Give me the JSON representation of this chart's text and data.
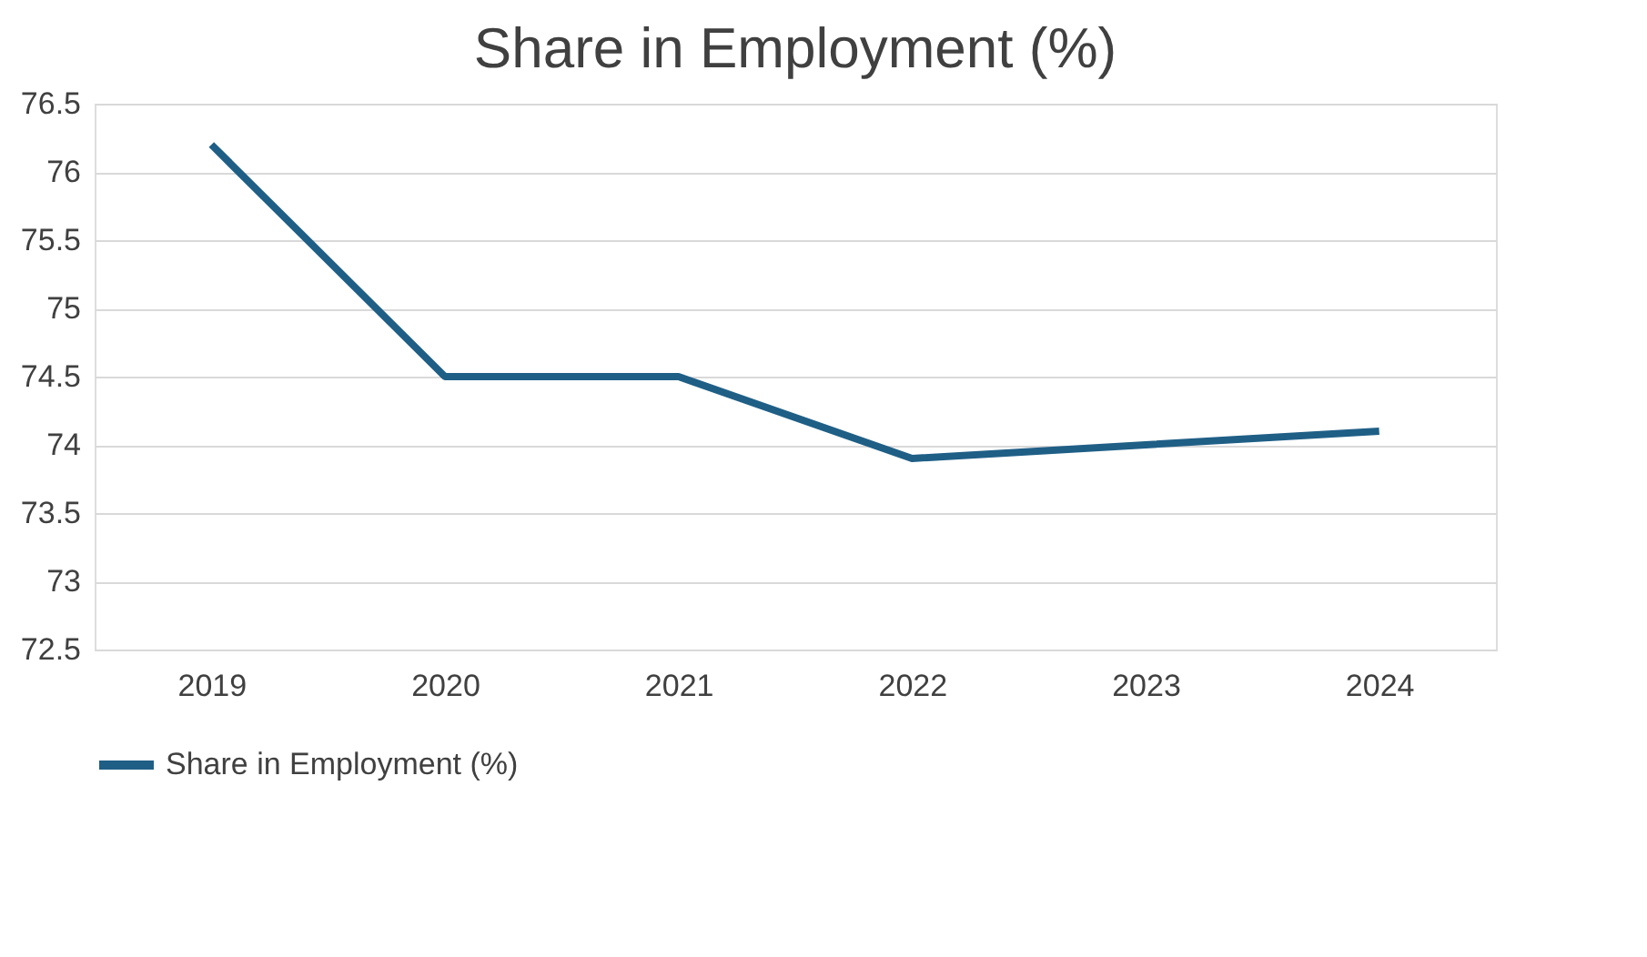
{
  "chart_data": {
    "type": "line",
    "title": "Share in Employment (%)",
    "categories": [
      "2019",
      "2020",
      "2021",
      "2022",
      "2023",
      "2024"
    ],
    "series": [
      {
        "name": "Share in Employment (%)",
        "color": "#1f5f86",
        "values": [
          76.2,
          74.5,
          74.5,
          73.9,
          74.0,
          74.1
        ]
      }
    ],
    "ylim": [
      72.5,
      76.5
    ],
    "yticks": [
      72.5,
      73,
      73.5,
      74,
      74.5,
      75,
      75.5,
      76,
      76.5
    ],
    "grid": "y",
    "legend": "bottom",
    "marker": "none",
    "line_style": "solid"
  }
}
